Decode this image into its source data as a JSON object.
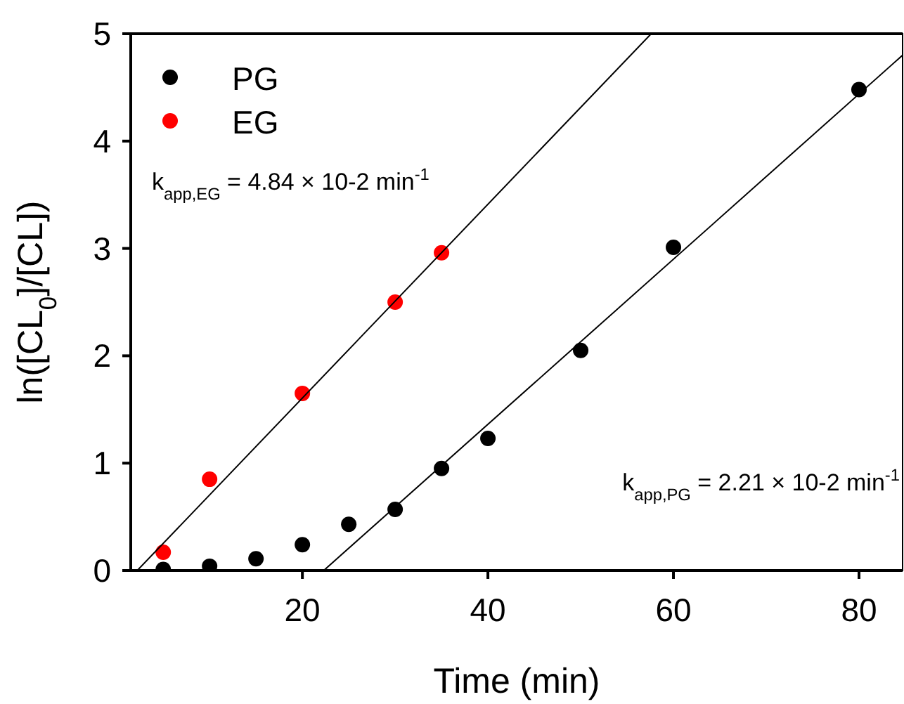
{
  "chart_data": {
    "type": "scatter",
    "xlabel": "Time (min)",
    "ylabel": "ln([CL$_{0}$]/[CL])",
    "xlim": [
      1.5,
      84.7
    ],
    "ylim": [
      0,
      5
    ],
    "xticks": [
      20,
      40,
      60,
      80
    ],
    "yticks": [
      0,
      1,
      2,
      3,
      4,
      5
    ],
    "grid": false,
    "legend": "top left",
    "marker": "circle",
    "series": [
      {
        "name": "PG",
        "color": "#000000",
        "x": [
          5,
          10,
          15,
          20,
          25,
          30,
          35,
          40,
          50,
          60,
          80
        ],
        "values": [
          0.01,
          0.04,
          0.11,
          0.24,
          0.43,
          0.57,
          0.95,
          1.23,
          2.05,
          3.01,
          4.48
        ]
      },
      {
        "name": "EG",
        "color": "#ff0000",
        "x": [
          5,
          10,
          20,
          30,
          35
        ],
        "values": [
          0.17,
          0.85,
          1.65,
          2.5,
          2.96
        ]
      },
      {
        "type": "line",
        "marker": "none",
        "color": "#000000",
        "x": [
          2.2,
          57.6
        ],
        "values": [
          0,
          5
        ]
      },
      {
        "type": "line",
        "marker": "none",
        "color": "#000000",
        "x": [
          22.3,
          84.7
        ],
        "values": [
          0,
          4.8
        ]
      }
    ],
    "annotations": [
      "k$_{app,EG}$ = 4.84 × 10-2 min$^{-1}$",
      "k$_{app,PG}$ = 2.21 × 10-2 min$^{-1}$"
    ]
  }
}
